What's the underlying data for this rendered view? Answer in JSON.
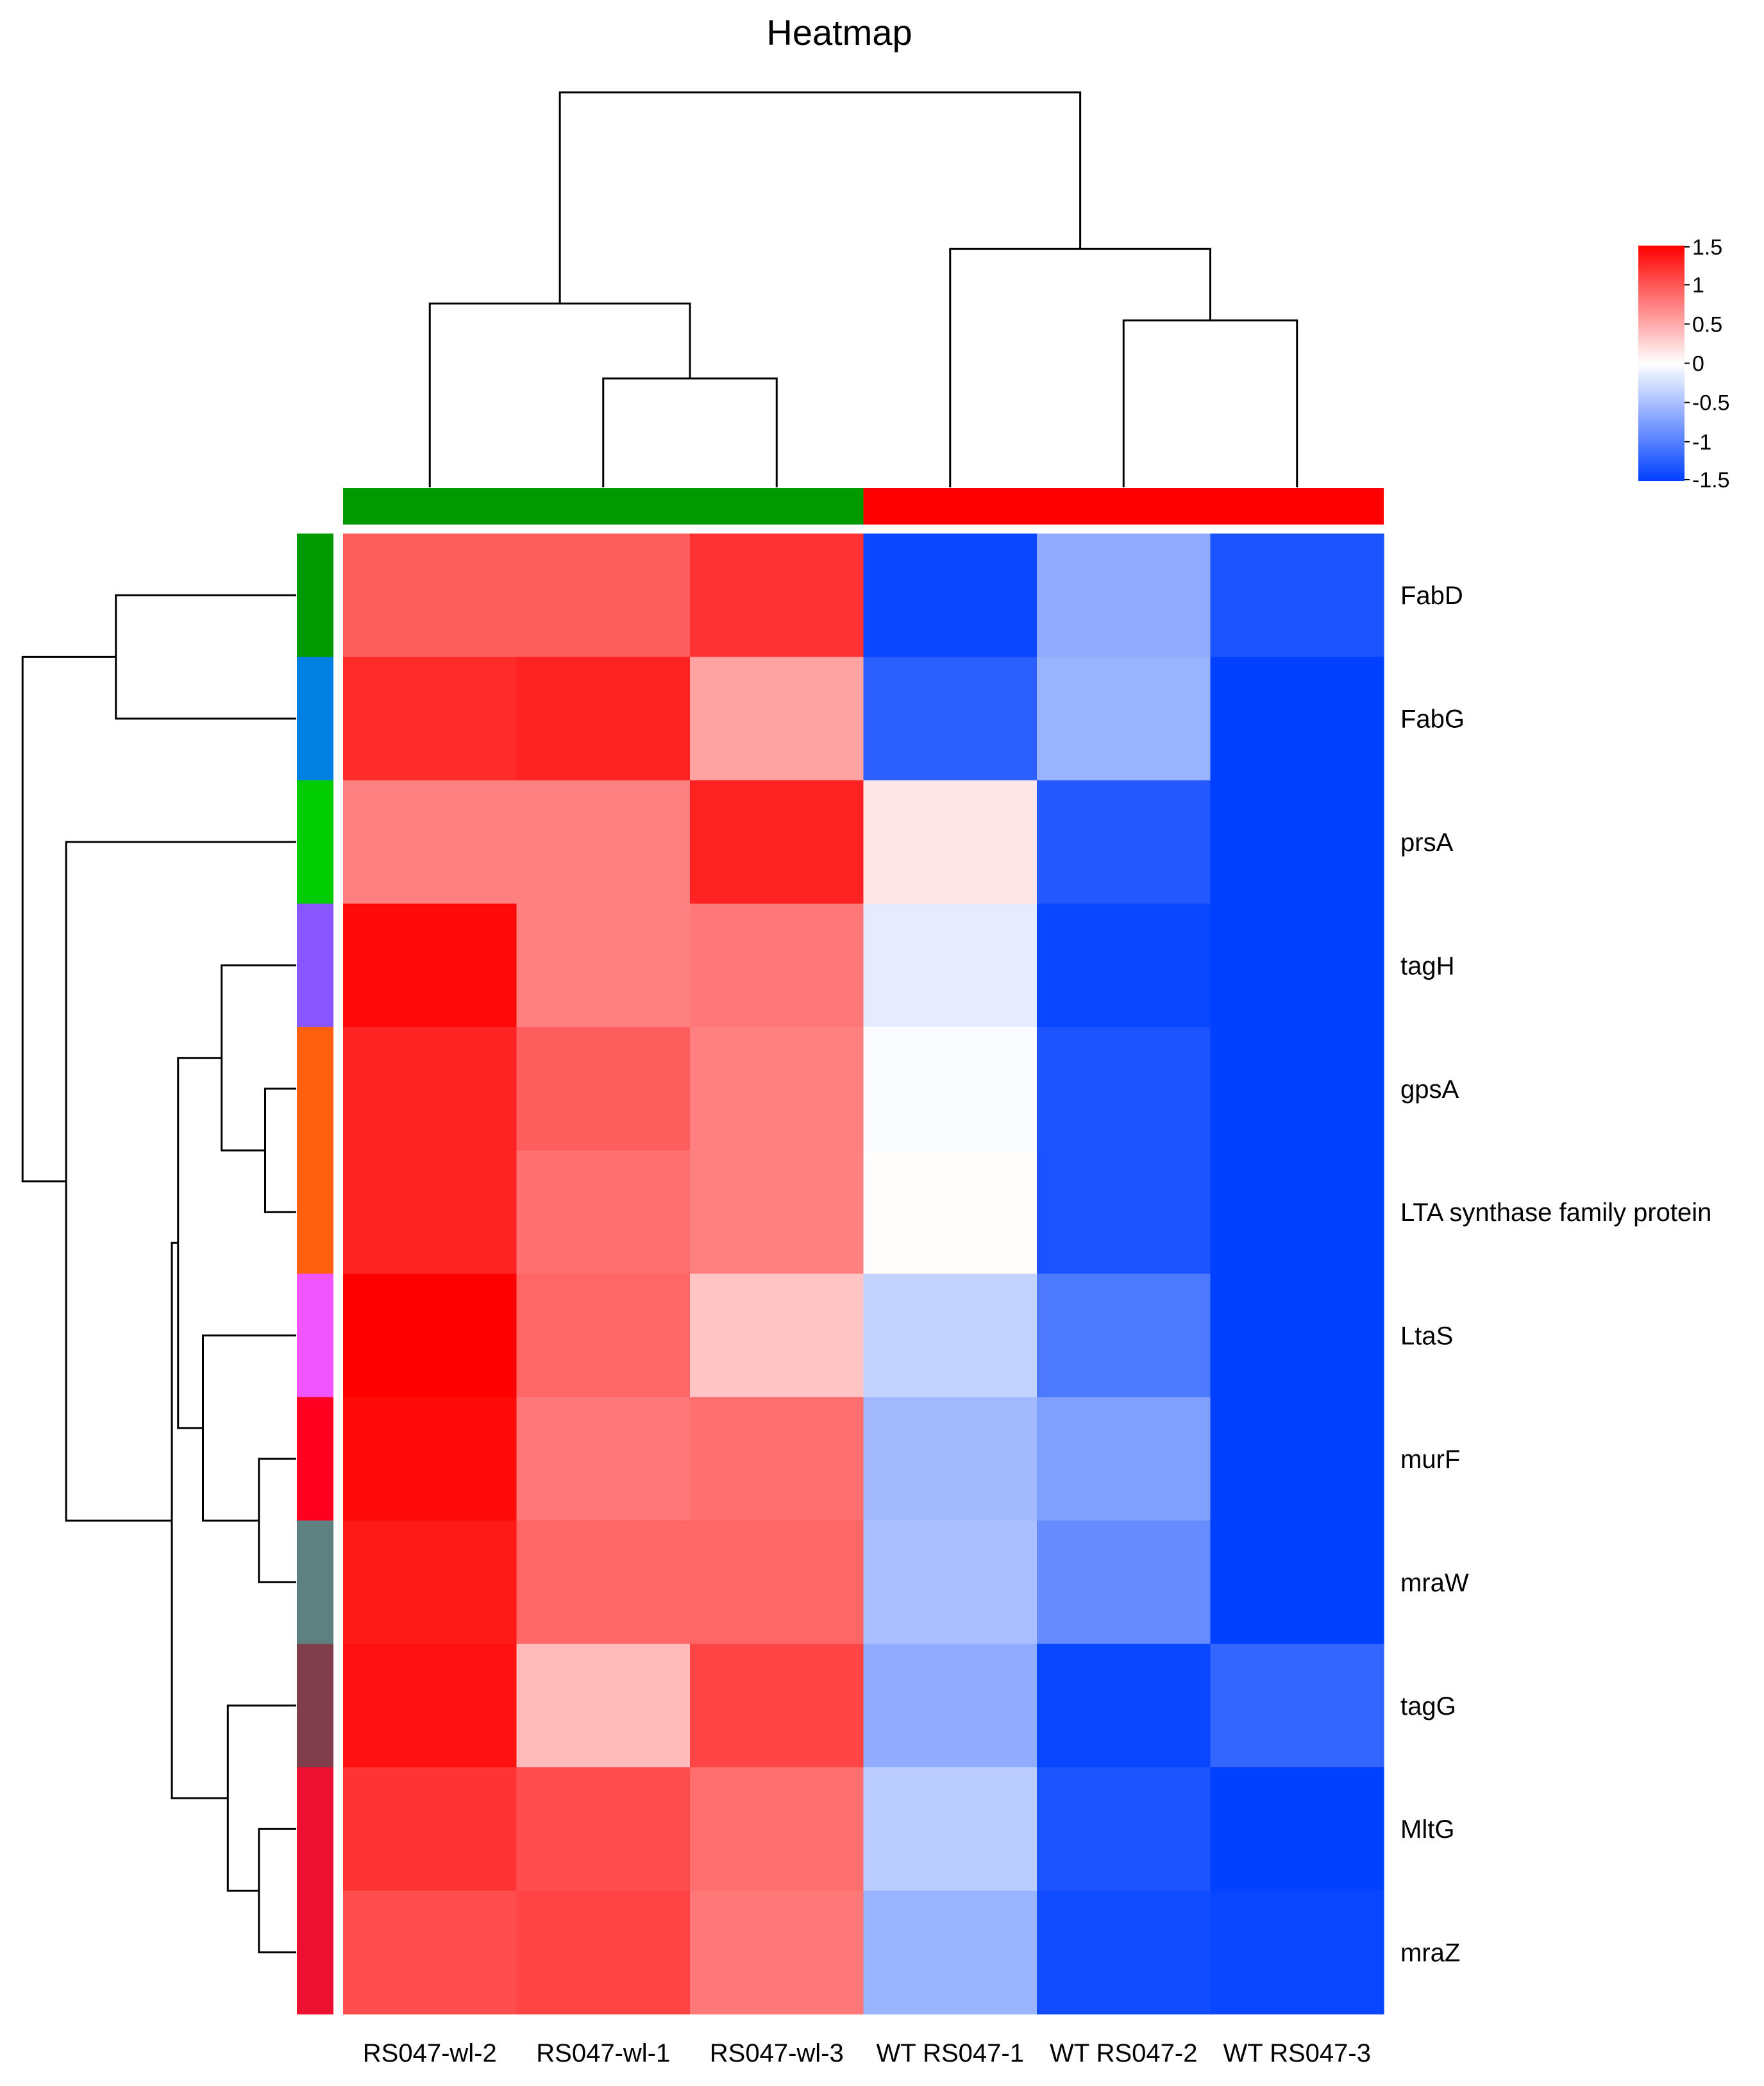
{
  "chart_data": {
    "type": "heatmap",
    "title": "Heatmap",
    "columns": [
      "RS047-wl-2",
      "RS047-wl-1",
      "RS047-wl-3",
      "WT RS047-1",
      "WT RS047-2",
      "WT RS047-3"
    ],
    "rows": [
      "FabD",
      "FabG",
      "prsA",
      "tagH",
      "gpsA",
      "LTA synthase family protein",
      "LtaS",
      "murF",
      "mraW",
      "tagG",
      "MltG",
      "mraZ"
    ],
    "values": [
      [
        0.95,
        0.95,
        1.2,
        -1.45,
        -0.65,
        -1.35
      ],
      [
        1.25,
        1.3,
        0.55,
        -1.25,
        -0.6,
        -1.5
      ],
      [
        0.75,
        0.75,
        1.3,
        0.15,
        -1.3,
        -1.5
      ],
      [
        1.45,
        0.75,
        0.8,
        -0.15,
        -1.45,
        -1.5
      ],
      [
        1.3,
        0.95,
        0.75,
        -0.03,
        -1.35,
        -1.5
      ],
      [
        1.3,
        0.85,
        0.75,
        0.02,
        -1.35,
        -1.5
      ],
      [
        1.5,
        0.9,
        0.35,
        -0.35,
        -1.05,
        -1.5
      ],
      [
        1.45,
        0.8,
        0.85,
        -0.55,
        -0.75,
        -1.5
      ],
      [
        1.35,
        0.9,
        0.9,
        -0.5,
        -0.9,
        -1.5
      ],
      [
        1.4,
        0.4,
        1.1,
        -0.65,
        -1.45,
        -1.2
      ],
      [
        1.2,
        1.05,
        0.85,
        -0.4,
        -1.35,
        -1.5
      ],
      [
        1.05,
        1.1,
        0.8,
        -0.6,
        -1.4,
        -1.45
      ]
    ],
    "color_scale": {
      "min": -1.5,
      "mid": 0,
      "max": 1.5,
      "low_color": "#0040ff",
      "mid_color": "#ffffff",
      "high_color": "#ff0000"
    },
    "legend_ticks": [
      "1.5",
      "1",
      "0.5",
      "0",
      "-0.5",
      "-1",
      "-1.5"
    ],
    "legend_tick_values": [
      1.5,
      1,
      0.5,
      0,
      -0.5,
      -1,
      -1.5
    ],
    "column_groups": [
      {
        "columns": [
          "RS047-wl-2",
          "RS047-wl-1",
          "RS047-wl-3"
        ],
        "color": "#009900"
      },
      {
        "columns": [
          "WT RS047-1",
          "WT RS047-2",
          "WT RS047-3"
        ],
        "color": "#ff0000"
      }
    ],
    "row_annotation_colors": [
      "#009900",
      "#0080e0",
      "#00cc00",
      "#8855ff",
      "#ff6010",
      "#ff6010",
      "#f055ff",
      "#ff0020",
      "#5f8080",
      "#7f3f4a",
      "#ee1030",
      "#ee1030"
    ],
    "column_dendrogram": [
      {
        "cols": [
          "RS047-wl-1",
          "RS047-wl-3"
        ],
        "height": 1.6
      },
      {
        "cols": [
          "RS047-wl-2",
          "RS047-wl-1+RS047-wl-3"
        ],
        "height": 2.7
      },
      {
        "cols": [
          "WT RS047-2",
          "WT RS047-3"
        ],
        "height": 2.45
      },
      {
        "cols": [
          "WT RS047-1",
          "WT RS047-2+WT RS047-3"
        ],
        "height": 3.5
      },
      {
        "cols": [
          "RS047-wl",
          "WT RS047"
        ],
        "height": 5.8
      }
    ],
    "row_dendrogram": [
      {
        "rows": [
          "FabD",
          "FabG"
        ],
        "height": 1.45
      },
      {
        "rows": [
          "gpsA",
          "LTA synthase family protein"
        ],
        "height": 0.25
      },
      {
        "rows": [
          "tagH",
          "gpsA+LTA"
        ],
        "height": 0.6
      },
      {
        "rows": [
          "murF",
          "mraW"
        ],
        "height": 0.3
      },
      {
        "rows": [
          "LtaS",
          "murF+mraW"
        ],
        "height": 0.75
      },
      {
        "rows": [
          "tagH-group",
          "LtaS-group"
        ],
        "height": 0.95
      },
      {
        "rows": [
          "MltG",
          "mraZ"
        ],
        "height": 0.3
      },
      {
        "rows": [
          "tagG",
          "MltG+mraZ"
        ],
        "height": 0.55
      },
      {
        "rows": [
          "tagH..mraW",
          "tagG..mraZ"
        ],
        "height": 1.0
      },
      {
        "rows": [
          "prsA",
          "tagH..mraZ"
        ],
        "height": 1.85
      },
      {
        "rows": [
          "FabD+FabG",
          "prsA..mraZ"
        ],
        "height": 2.2
      }
    ]
  }
}
